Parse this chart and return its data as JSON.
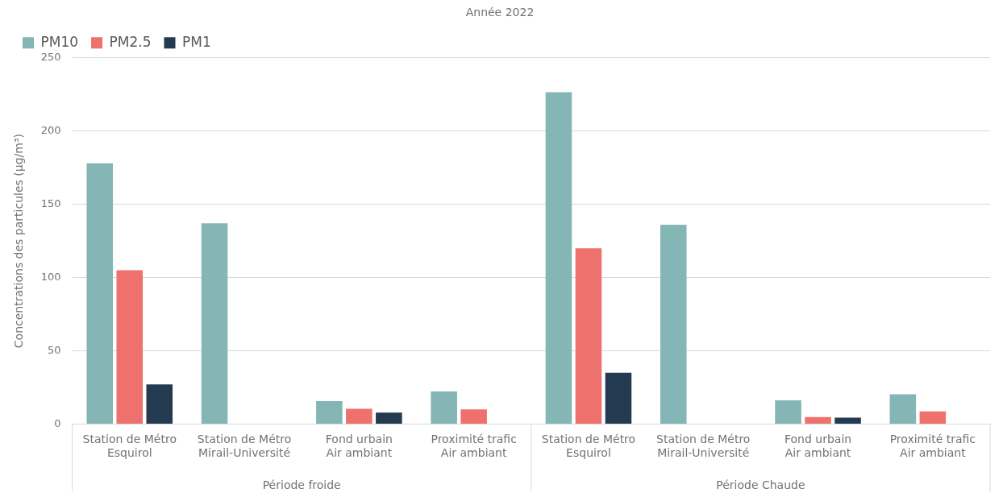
{
  "chart_data": {
    "type": "bar",
    "title": "Année 2022",
    "ylabel": "Concentrations des particules (µg/m³)",
    "categories": [
      "Station de Métro\nEsquirol",
      "Station de Métro\nMirail-Université",
      "Fond urbain\nAir ambiant",
      "Proximité trafic\nAir ambiant",
      "Station de Métro\nEsquirol",
      "Station de Métro\nMirail-Université",
      "Fond urbain\nAir ambiant",
      "Proximité trafic\nAir ambiant"
    ],
    "series": [
      {
        "name": "PM10",
        "color": "#83b6b5",
        "values": [
          178,
          137,
          15.6,
          22.2,
          226.5,
          136,
          16.2,
          20.3
        ]
      },
      {
        "name": "PM2.5",
        "color": "#ee716e",
        "values": [
          105,
          null,
          10.4,
          10,
          120,
          null,
          4.7,
          8.6
        ]
      },
      {
        "name": "PM1",
        "color": "#243a50",
        "values": [
          27,
          null,
          7.8,
          null,
          35,
          null,
          4.3,
          null
        ]
      }
    ],
    "ylim": [
      0,
      250
    ],
    "yticks": [
      0,
      50,
      100,
      150,
      200,
      250
    ],
    "grid": "y",
    "legend": "top left",
    "annotations": [
      "Période froide",
      "Période Chaude"
    ]
  }
}
